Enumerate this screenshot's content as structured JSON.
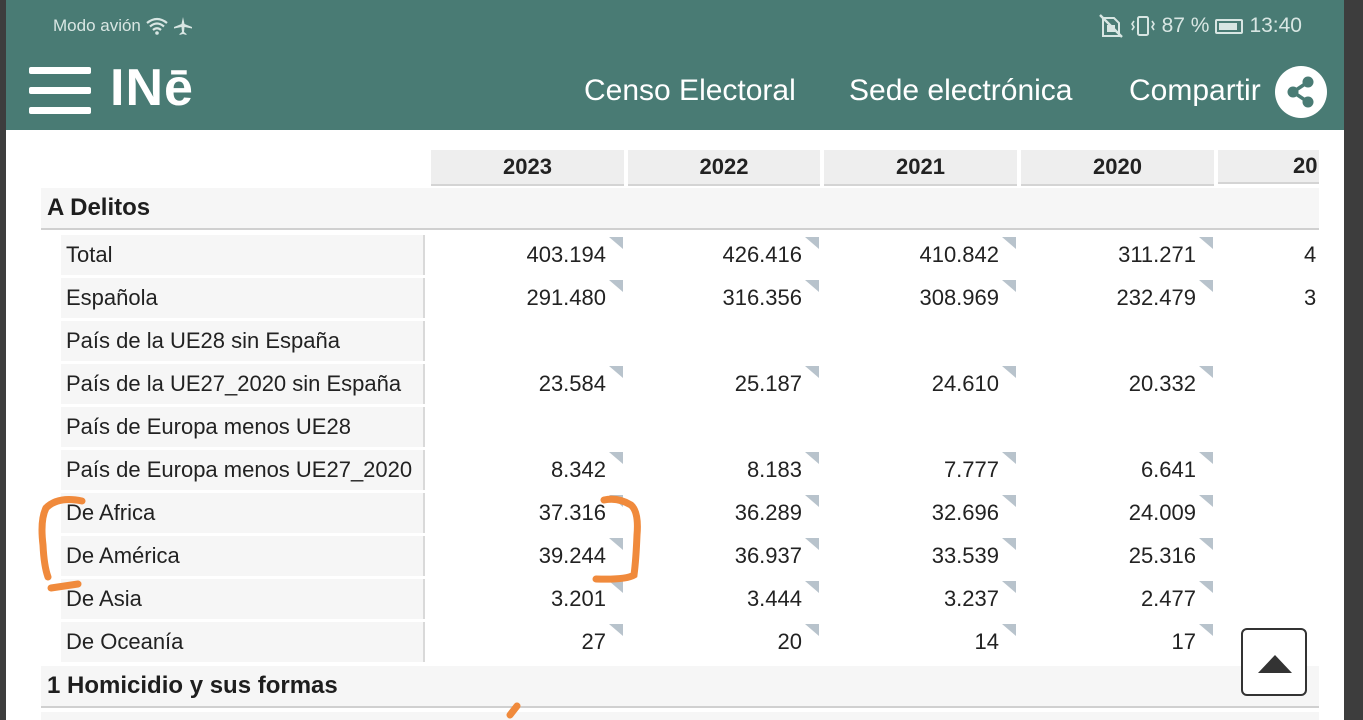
{
  "status_bar": {
    "left_text": "Modo avión",
    "battery": "87 %",
    "time": "13:40",
    "icons": [
      "wifi-icon",
      "airplane-icon",
      "no-sim-icon",
      "vibrate-icon",
      "battery-icon"
    ]
  },
  "header": {
    "logo": "INē",
    "nav": [
      "Censo Electoral",
      "Sede electrónica",
      "Compartir"
    ],
    "bg_color": "#497b74"
  },
  "table": {
    "years": [
      "2023",
      "2022",
      "2021",
      "2020",
      "20"
    ],
    "sections": [
      {
        "title": "A Delitos",
        "rows": [
          {
            "label": "Total",
            "values": [
              "403.194",
              "426.416",
              "410.842",
              "311.271",
              "4"
            ]
          },
          {
            "label": "Española",
            "values": [
              "291.480",
              "316.356",
              "308.969",
              "232.479",
              "3"
            ]
          },
          {
            "label": "País de la UE28 sin España",
            "values": [
              "",
              "",
              "",
              "",
              ""
            ]
          },
          {
            "label": "País de la UE27_2020 sin España",
            "values": [
              "23.584",
              "25.187",
              "24.610",
              "20.332",
              ""
            ]
          },
          {
            "label": "País de Europa menos UE28",
            "values": [
              "",
              "",
              "",
              "",
              ""
            ]
          },
          {
            "label": "País de Europa menos UE27_2020",
            "values": [
              "8.342",
              "8.183",
              "7.777",
              "6.641",
              ""
            ]
          },
          {
            "label": "De Africa",
            "values": [
              "37.316",
              "36.289",
              "32.696",
              "24.009",
              ""
            ]
          },
          {
            "label": "De América",
            "values": [
              "39.244",
              "36.937",
              "33.539",
              "25.316",
              ""
            ]
          },
          {
            "label": "De Asia",
            "values": [
              "3.201",
              "3.444",
              "3.237",
              "2.477",
              ""
            ]
          },
          {
            "label": "De Oceanía",
            "values": [
              "27",
              "20",
              "14",
              "17",
              ""
            ]
          }
        ]
      },
      {
        "title": "1 Homicidio y sus formas",
        "rows": []
      }
    ]
  },
  "annotation_color": "#f08a3c"
}
